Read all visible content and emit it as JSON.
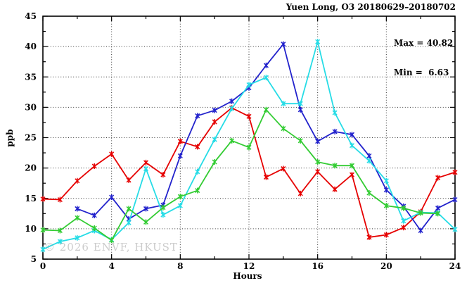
{
  "chart_data": {
    "type": "line",
    "title": "Yuen Long, O3 20180629–20180702",
    "xlabel": "Hours",
    "ylabel": "ppb",
    "xlim": [
      0,
      24
    ],
    "ylim": [
      5,
      45
    ],
    "xticks": [
      0,
      4,
      8,
      12,
      16,
      20,
      24
    ],
    "xticks_minor": [
      2,
      6,
      10,
      14,
      18,
      22
    ],
    "yticks": [
      5,
      10,
      15,
      20,
      25,
      30,
      35,
      40,
      45
    ],
    "yticks_minor": [
      7.5,
      12.5,
      17.5,
      22.5,
      27.5,
      32.5,
      37.5,
      42.5
    ],
    "grid": true,
    "legend_position": "none",
    "annotation": {
      "max_label": "Max = 40.82",
      "min_label": "Min =  6.63"
    },
    "watermark": "© 2026 ENVF, HKUST",
    "x": [
      0,
      1,
      2,
      3,
      4,
      5,
      6,
      7,
      8,
      9,
      10,
      11,
      12,
      13,
      14,
      15,
      16,
      17,
      18,
      19,
      20,
      21,
      22,
      23,
      24
    ],
    "series": [
      {
        "name": "series-red",
        "color": "#e60000",
        "values": [
          14.9,
          14.8,
          17.9,
          20.3,
          22.3,
          18.0,
          20.9,
          18.9,
          24.4,
          23.5,
          27.6,
          29.9,
          28.5,
          18.5,
          19.9,
          15.8,
          19.4,
          16.5,
          18.9,
          8.6,
          9.0,
          10.2,
          12.8,
          18.4,
          19.3
        ]
      },
      {
        "name": "series-blue",
        "color": "#2222cc",
        "values": [
          null,
          null,
          13.3,
          12.2,
          15.2,
          11.6,
          13.3,
          13.9,
          22.0,
          28.6,
          29.5,
          31.0,
          33.2,
          36.9,
          40.4,
          29.6,
          24.4,
          26.0,
          25.5,
          22.0,
          16.4,
          13.7,
          9.7,
          13.4,
          14.8
        ]
      },
      {
        "name": "series-cyan",
        "color": "#26dce6",
        "values": [
          6.6,
          7.9,
          8.5,
          9.7,
          8.2,
          11.0,
          19.9,
          12.3,
          13.8,
          19.4,
          24.7,
          29.8,
          33.7,
          34.9,
          30.6,
          30.6,
          40.8,
          29.1,
          23.7,
          21.2,
          17.9,
          11.3,
          12.7,
          12.6,
          9.9
        ]
      },
      {
        "name": "series-green",
        "color": "#33cc33",
        "values": [
          9.8,
          9.7,
          11.8,
          10.1,
          8.1,
          13.3,
          11.1,
          13.5,
          15.3,
          16.3,
          21.0,
          24.5,
          23.4,
          29.6,
          26.5,
          24.5,
          21.0,
          20.4,
          20.4,
          15.9,
          13.8,
          13.4,
          12.6,
          12.5,
          null
        ]
      }
    ]
  }
}
